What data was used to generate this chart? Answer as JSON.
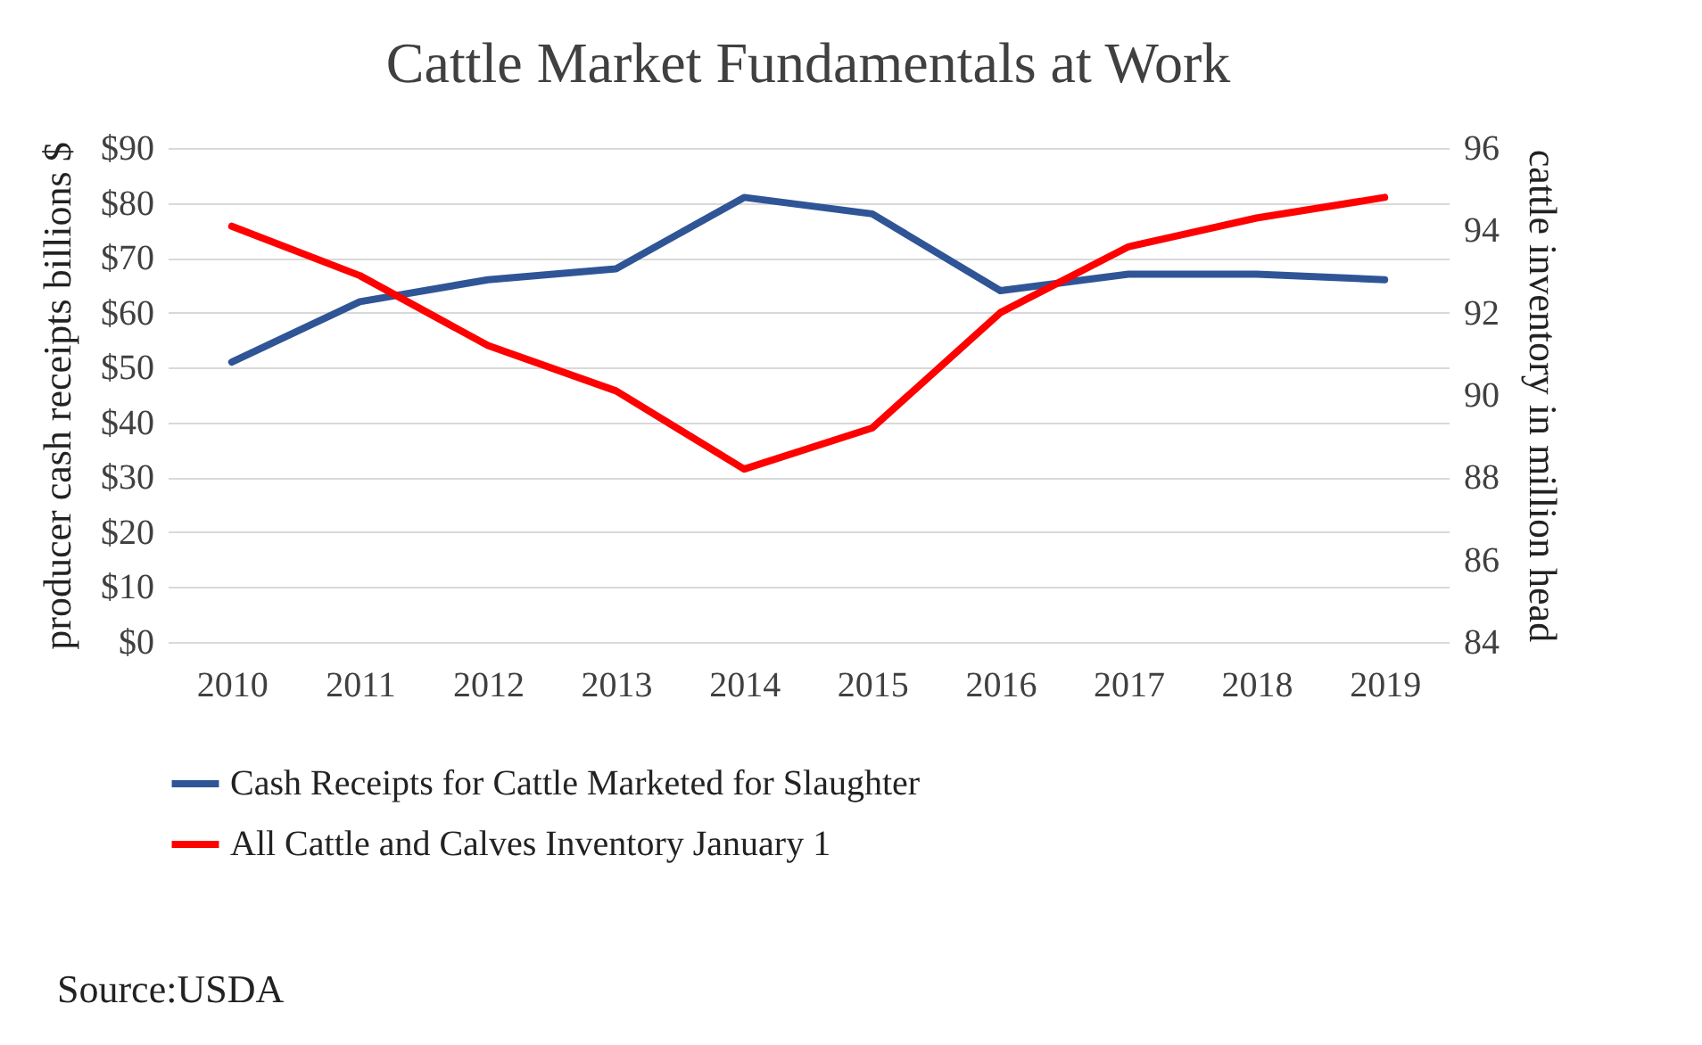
{
  "chart_data": {
    "type": "line",
    "title": "Cattle Market Fundamentals at Work",
    "categories": [
      "2010",
      "2011",
      "2012",
      "2013",
      "2014",
      "2015",
      "2016",
      "2017",
      "2018",
      "2019"
    ],
    "series": [
      {
        "name": "Cash Receipts for Cattle Marketed for Slaughter",
        "color": "#2f5597",
        "values": [
          51,
          62,
          66,
          68,
          81,
          78,
          64,
          67,
          67,
          66
        ]
      },
      {
        "name": "All Cattle and Calves Inventory January 1",
        "color": "#ff0000",
        "axis": "y2",
        "values": [
          94.1,
          92.9,
          91.2,
          90.1,
          88.2,
          89.2,
          92.0,
          93.6,
          94.3,
          94.8
        ]
      }
    ],
    "ylabel": "producer cash receipts billions $",
    "y2label": "cattle inventory in million head",
    "ylim": [
      0,
      90
    ],
    "yticks": [
      {
        "value": 0,
        "label": "$0"
      },
      {
        "value": 10,
        "label": "$10"
      },
      {
        "value": 20,
        "label": "$20"
      },
      {
        "value": 30,
        "label": "$30"
      },
      {
        "value": 40,
        "label": "$40"
      },
      {
        "value": 50,
        "label": "$50"
      },
      {
        "value": 60,
        "label": "$60"
      },
      {
        "value": 70,
        "label": "$70"
      },
      {
        "value": 80,
        "label": "$80"
      },
      {
        "value": 90,
        "label": "$90"
      }
    ],
    "y2lim": [
      84,
      96
    ],
    "y2ticks": [
      84,
      86,
      88,
      90,
      92,
      94,
      96
    ],
    "grid": "y",
    "legend": "bottom",
    "marker": "none",
    "line_style": "solid",
    "annotations": [
      "Source:USDA"
    ]
  }
}
